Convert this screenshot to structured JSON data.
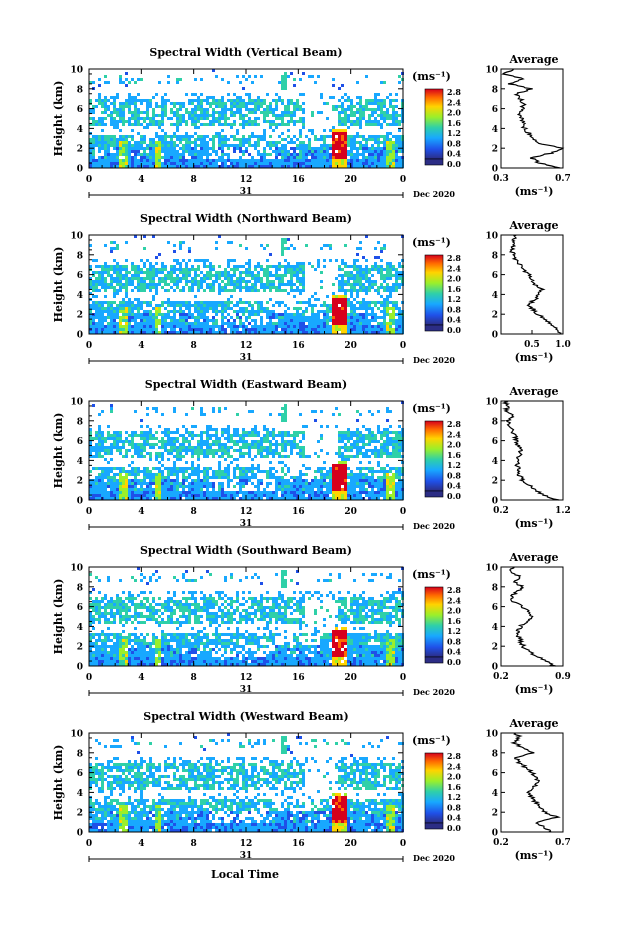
{
  "figure": {
    "xlabel": "Local Time",
    "date_label": "31",
    "month_label": "Dec 2020",
    "colorbar_unit": "(ms⁻¹)",
    "avg_title": "Average",
    "avg_xlabel": "(ms⁻¹)"
  },
  "colorbar": {
    "ticks": [
      "2.8",
      "2.4",
      "2.0",
      "1.6",
      "1.2",
      "0.8",
      "0.4",
      "0.0"
    ],
    "colors": [
      "#d6001c",
      "#ff6a00",
      "#ffd400",
      "#9bef2a",
      "#2fd0a8",
      "#18a8ff",
      "#1f50e8",
      "#2c2d85"
    ]
  },
  "chart_data": [
    {
      "type": "heatmap",
      "title": "Spectral Width (Vertical Beam)",
      "ylabel": "Height (km)",
      "ylim": [
        0,
        10
      ],
      "x_ticks": [
        "0",
        "4",
        "8",
        "12",
        "16",
        "20",
        "0"
      ],
      "y_ticks": [
        "0",
        "2",
        "4",
        "6",
        "8",
        "10"
      ],
      "average": {
        "xlim": [
          0.3,
          0.7
        ],
        "x_ticks": [
          "0.3",
          "0.7"
        ],
        "heights": [
          0,
          0.5,
          1,
          1.5,
          2,
          2.5,
          3,
          3.5,
          4,
          4.5,
          5,
          5.5,
          6,
          6.5,
          7,
          7.5,
          8,
          8.5,
          9,
          9.5,
          10
        ],
        "values": [
          0.68,
          0.55,
          0.5,
          0.62,
          0.7,
          0.55,
          0.5,
          0.48,
          0.45,
          0.45,
          0.43,
          0.42,
          0.44,
          0.45,
          0.42,
          0.4,
          0.5,
          0.35,
          0.45,
          0.32,
          0.38
        ]
      }
    },
    {
      "type": "heatmap",
      "title": "Spectral Width (Northward Beam)",
      "ylabel": "Height (km)",
      "ylim": [
        0,
        10
      ],
      "x_ticks": [
        "0",
        "4",
        "8",
        "12",
        "16",
        "20",
        "0"
      ],
      "y_ticks": [
        "0",
        "2",
        "4",
        "6",
        "8",
        "10"
      ],
      "average": {
        "xlim": [
          0.0,
          1.0
        ],
        "x_ticks": [
          "0.5",
          "1.0"
        ],
        "heights": [
          0,
          0.5,
          1,
          1.5,
          2,
          2.5,
          3,
          3.5,
          4,
          4.5,
          5,
          5.5,
          6,
          6.5,
          7,
          7.5,
          8,
          8.5,
          9,
          9.5,
          10
        ],
        "values": [
          0.95,
          0.9,
          0.8,
          0.72,
          0.6,
          0.52,
          0.45,
          0.55,
          0.62,
          0.65,
          0.55,
          0.5,
          0.45,
          0.35,
          0.3,
          0.25,
          0.2,
          0.18,
          0.22,
          0.2,
          0.25
        ]
      }
    },
    {
      "type": "heatmap",
      "title": "Spectral Width (Eastward Beam)",
      "ylabel": "Height (km)",
      "ylim": [
        0,
        10
      ],
      "x_ticks": [
        "0",
        "4",
        "8",
        "12",
        "16",
        "20",
        "0"
      ],
      "y_ticks": [
        "0",
        "2",
        "4",
        "6",
        "8",
        "10"
      ],
      "average": {
        "xlim": [
          0.2,
          1.2
        ],
        "x_ticks": [
          "0.2",
          "1.2"
        ],
        "heights": [
          0,
          0.5,
          1,
          1.5,
          2,
          2.5,
          3,
          3.5,
          4,
          4.5,
          5,
          5.5,
          6,
          6.5,
          7,
          7.5,
          8,
          8.5,
          9,
          9.5,
          10
        ],
        "values": [
          1.1,
          0.9,
          0.75,
          0.65,
          0.55,
          0.5,
          0.48,
          0.46,
          0.45,
          0.5,
          0.52,
          0.48,
          0.45,
          0.42,
          0.38,
          0.35,
          0.3,
          0.4,
          0.28,
          0.3,
          0.25
        ]
      }
    },
    {
      "type": "heatmap",
      "title": "Spectral Width (Southward Beam)",
      "ylabel": "Height (km)",
      "ylim": [
        0,
        10
      ],
      "x_ticks": [
        "0",
        "4",
        "8",
        "12",
        "16",
        "20",
        "0"
      ],
      "y_ticks": [
        "0",
        "2",
        "4",
        "6",
        "8",
        "10"
      ],
      "average": {
        "xlim": [
          0.2,
          0.9
        ],
        "x_ticks": [
          "0.2",
          "0.9"
        ],
        "heights": [
          0,
          0.5,
          1,
          1.5,
          2,
          2.5,
          3,
          3.5,
          4,
          4.5,
          5,
          5.5,
          6,
          6.5,
          7,
          7.5,
          8,
          8.5,
          9,
          9.5,
          10
        ],
        "values": [
          0.8,
          0.7,
          0.6,
          0.5,
          0.45,
          0.42,
          0.4,
          0.38,
          0.42,
          0.48,
          0.55,
          0.5,
          0.45,
          0.35,
          0.32,
          0.38,
          0.45,
          0.35,
          0.42,
          0.3,
          0.35
        ]
      }
    },
    {
      "type": "heatmap",
      "title": "Spectral Width (Westward Beam)",
      "ylabel": "Height (km)",
      "ylim": [
        0,
        10
      ],
      "x_ticks": [
        "0",
        "4",
        "8",
        "12",
        "16",
        "20",
        "0"
      ],
      "y_ticks": [
        "0",
        "2",
        "4",
        "6",
        "8",
        "10"
      ],
      "average": {
        "xlim": [
          0.2,
          0.7
        ],
        "x_ticks": [
          "0.2",
          "0.7"
        ],
        "heights": [
          0,
          0.5,
          1,
          1.5,
          2,
          2.5,
          3,
          3.5,
          4,
          4.5,
          5,
          5.5,
          6,
          6.5,
          7,
          7.5,
          8,
          8.5,
          9,
          9.5,
          10
        ],
        "values": [
          0.6,
          0.55,
          0.48,
          0.65,
          0.55,
          0.5,
          0.48,
          0.45,
          0.42,
          0.45,
          0.5,
          0.48,
          0.45,
          0.4,
          0.35,
          0.32,
          0.45,
          0.38,
          0.3,
          0.35,
          0.32
        ]
      }
    }
  ]
}
